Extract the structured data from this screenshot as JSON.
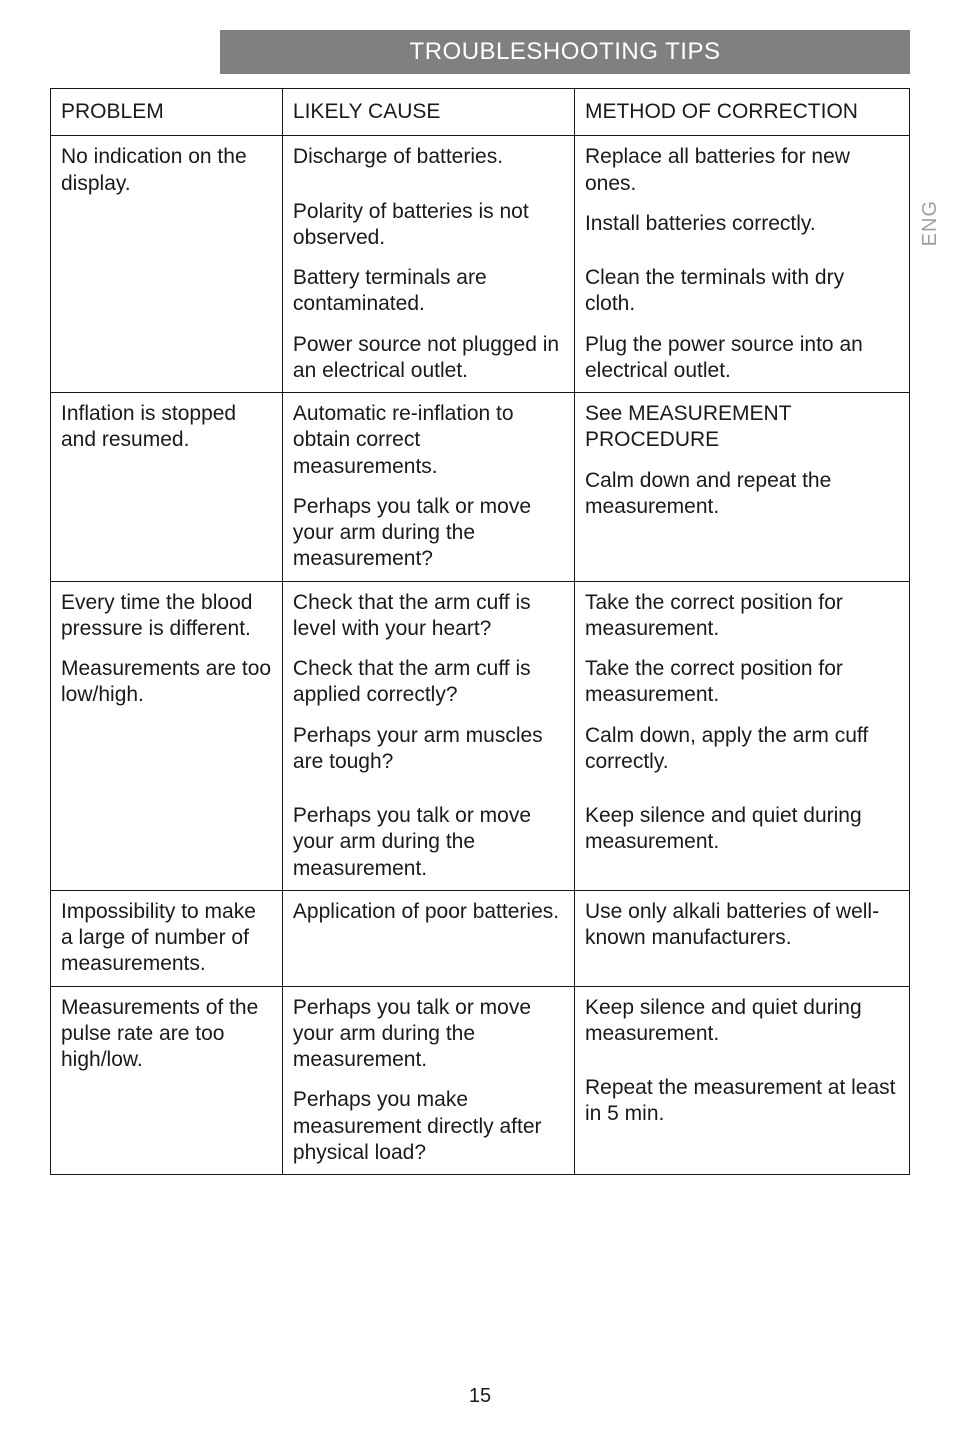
{
  "title": "TROUBLESHOOTING TIPS",
  "lang_tab": "ENG",
  "page_number": "15",
  "headers": {
    "col1": "PROBLEM",
    "col2": "LIKELY CAUSE",
    "col3": "METHOD OF CORRECTION"
  },
  "rows": [
    {
      "problem": [
        "No indication on the display."
      ],
      "cause": [
        "Discharge of batteries.",
        "Polarity of batteries is not observed.",
        "Battery terminals are contaminated.",
        "Power source not plugged in an electrical outlet."
      ],
      "correction": [
        "Replace all batteries for new ones.",
        "Install batteries correctly.",
        "Clean the terminals with dry cloth.",
        "Plug the power source into an electrical outlet."
      ]
    },
    {
      "problem": [
        "Inflation is stopped and resumed."
      ],
      "cause": [
        "Automatic re-inflation to obtain correct measurements.",
        "Perhaps you talk or move your arm during the measurement?"
      ],
      "correction": [
        "See MEASUREMENT PROCEDURE",
        "Calm down and repeat the measurement."
      ]
    },
    {
      "problem": [
        "Every time the blood pressure is different.",
        "Measurements are too low/high."
      ],
      "cause": [
        "Check that the arm cuff is level with your heart?",
        "Check that the arm cuff is applied correctly?",
        "Perhaps your arm muscles are tough?",
        "Perhaps you talk or move your arm during the measurement."
      ],
      "correction": [
        "Take the correct position for measurement.",
        "Take the correct position for measurement.",
        "Calm down, apply the arm cuff correctly.",
        "Keep silence and quiet during measurement."
      ]
    },
    {
      "problem": [
        "Impossibility to make a large of number of measurements."
      ],
      "cause": [
        "Application of poor batteries."
      ],
      "correction": [
        "Use only alkali batteries of well-known manufacturers."
      ]
    },
    {
      "problem": [
        "Measurements of the pulse rate are too high/low."
      ],
      "cause": [
        "Perhaps you talk or move your arm during the measurement.",
        "Perhaps you make measurement directly after physical load?"
      ],
      "correction": [
        "Keep silence and quiet during measurement.",
        "Repeat the measurement at least in 5 min."
      ]
    }
  ]
}
